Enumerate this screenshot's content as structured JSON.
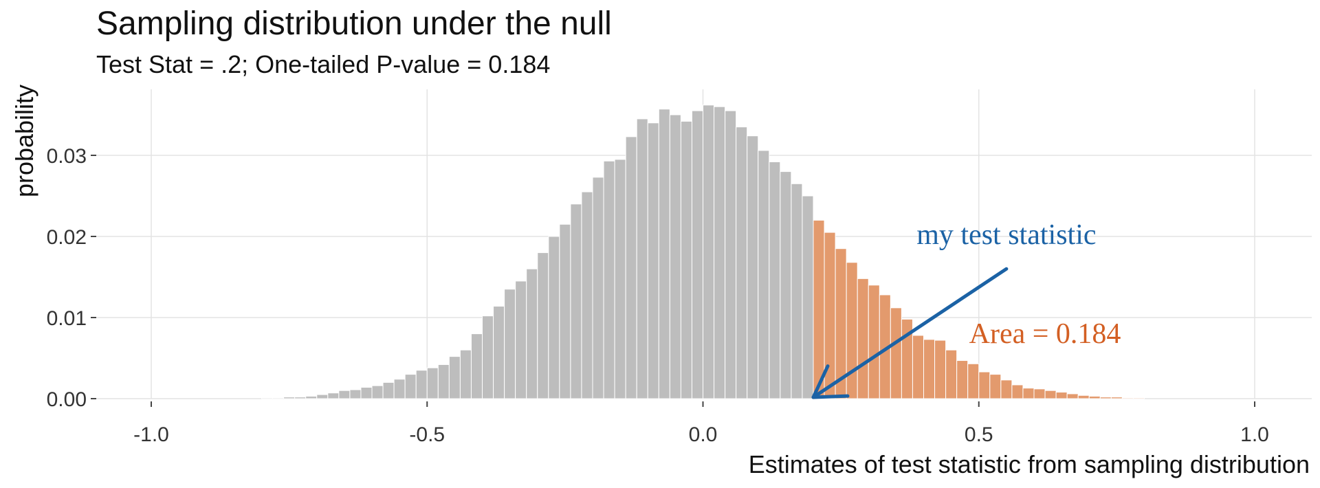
{
  "chart_data": {
    "type": "bar",
    "title": "Sampling distribution under the null",
    "subtitle": "Test Stat = .2; One-tailed P-value = 0.184",
    "xlabel": "Estimates of test statistic from sampling distribution",
    "ylabel": "probability",
    "xlim": [
      -1.05,
      1.1
    ],
    "ylim": [
      0,
      0.037
    ],
    "grid": true,
    "x_ticks": [
      -1.0,
      -0.5,
      0.0,
      0.5,
      1.0
    ],
    "x_tick_labels": [
      "-1.0",
      "-0.5",
      "0.0",
      "0.5",
      "1.0"
    ],
    "y_ticks": [
      0.0,
      0.01,
      0.02,
      0.03
    ],
    "y_tick_labels": [
      "0.00",
      "0.01",
      "0.02",
      "0.03"
    ],
    "bin_width": 0.02,
    "test_statistic": 0.2,
    "series": [
      {
        "color": "#bdbdbd",
        "x": [
          -0.79,
          -0.77,
          -0.75,
          -0.73,
          -0.71,
          -0.69,
          -0.67,
          -0.65,
          -0.63,
          -0.61,
          -0.59,
          -0.57,
          -0.55,
          -0.53,
          -0.51,
          -0.49,
          -0.47,
          -0.45,
          -0.43,
          -0.41,
          -0.39,
          -0.37,
          -0.35,
          -0.33,
          -0.31,
          -0.29,
          -0.27,
          -0.25,
          -0.23,
          -0.21,
          -0.19,
          -0.17,
          -0.15,
          -0.13,
          -0.11,
          -0.09,
          -0.07,
          -0.05,
          -0.03,
          -0.01,
          0.01,
          0.03,
          0.05,
          0.07,
          0.09,
          0.11,
          0.13,
          0.15,
          0.17,
          0.19
        ],
        "values": [
          0.0001,
          0.0001,
          0.0002,
          0.0002,
          0.0003,
          0.0005,
          0.0007,
          0.001,
          0.0011,
          0.0014,
          0.0016,
          0.002,
          0.0024,
          0.003,
          0.0035,
          0.0038,
          0.0042,
          0.0052,
          0.006,
          0.008,
          0.0102,
          0.0114,
          0.0135,
          0.0145,
          0.016,
          0.018,
          0.02,
          0.0215,
          0.024,
          0.0255,
          0.0273,
          0.0293,
          0.0295,
          0.0323,
          0.0345,
          0.034,
          0.0357,
          0.035,
          0.0342,
          0.0355,
          0.0362,
          0.036,
          0.0355,
          0.0335,
          0.0324,
          0.0306,
          0.0292,
          0.028,
          0.0265,
          0.025
        ]
      },
      {
        "color": "#e39a6d",
        "x": [
          0.21,
          0.23,
          0.25,
          0.27,
          0.29,
          0.31,
          0.33,
          0.35,
          0.37,
          0.39,
          0.41,
          0.43,
          0.45,
          0.47,
          0.49,
          0.51,
          0.53,
          0.55,
          0.57,
          0.59,
          0.61,
          0.63,
          0.65,
          0.67,
          0.69,
          0.71,
          0.73,
          0.75,
          0.77,
          0.79
        ],
        "values": [
          0.022,
          0.0205,
          0.0185,
          0.0168,
          0.0148,
          0.014,
          0.0128,
          0.0112,
          0.0098,
          0.0078,
          0.0073,
          0.0072,
          0.006,
          0.0047,
          0.0043,
          0.0033,
          0.003,
          0.0023,
          0.0017,
          0.0013,
          0.0012,
          0.001,
          0.0008,
          0.0006,
          0.0004,
          0.0003,
          0.0002,
          0.0002,
          0.0001,
          0.0001
        ]
      }
    ],
    "annotations": [
      {
        "text": "my test statistic",
        "color": "#1b62a5",
        "x": 0.55,
        "y": 0.0195,
        "arrow_from": [
          0.55,
          0.016
        ],
        "arrow_to": [
          0.2,
          0.0
        ]
      },
      {
        "text": "Area = 0.184",
        "color": "#d35f23",
        "x": 0.62,
        "y": 0.0072
      }
    ]
  }
}
